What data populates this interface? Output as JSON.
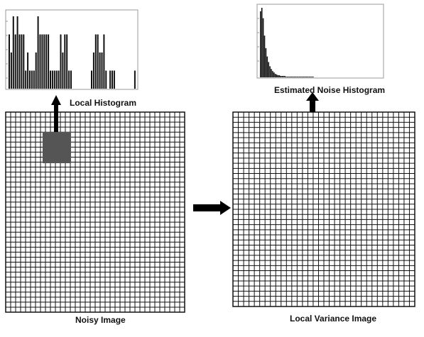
{
  "labels": {
    "local_histogram": "Local Histogram",
    "estimated_noise_histogram": "Estimated Noise Histogram",
    "noisy_image": "Noisy Image",
    "local_variance_image": "Local Variance Image"
  },
  "icons": [
    "arrow-up-icon",
    "arrow-right-icon",
    "arrow-up-icon"
  ],
  "colors": {
    "grid_line": "#111111",
    "highlight_window": "#555555",
    "arrow": "#000000",
    "histogram_bar": "#111111"
  },
  "local_histogram": {
    "bar_values": [
      3,
      2,
      4,
      3,
      4,
      3,
      3,
      3,
      1,
      2,
      1,
      1,
      1,
      2,
      4,
      3,
      3,
      3,
      3,
      3,
      1,
      1,
      1,
      1,
      1,
      3,
      2,
      3,
      3,
      1,
      1,
      0,
      0,
      0,
      0,
      0,
      0,
      0,
      0,
      0,
      1,
      2,
      3,
      3,
      2,
      2,
      3,
      1,
      0,
      1,
      1,
      1,
      0,
      0,
      0,
      0,
      0,
      0,
      0,
      0,
      0,
      1
    ]
  },
  "estimated_noise_histogram": {
    "bar_values": [
      95,
      100,
      85,
      60,
      42,
      30,
      22,
      16,
      12,
      9,
      7,
      5,
      4,
      3,
      3,
      2,
      2,
      2,
      2,
      1,
      1,
      1,
      1,
      1,
      1,
      1,
      1,
      1,
      1,
      1,
      1,
      1,
      1,
      1,
      1,
      1,
      1,
      1,
      1,
      1
    ]
  }
}
